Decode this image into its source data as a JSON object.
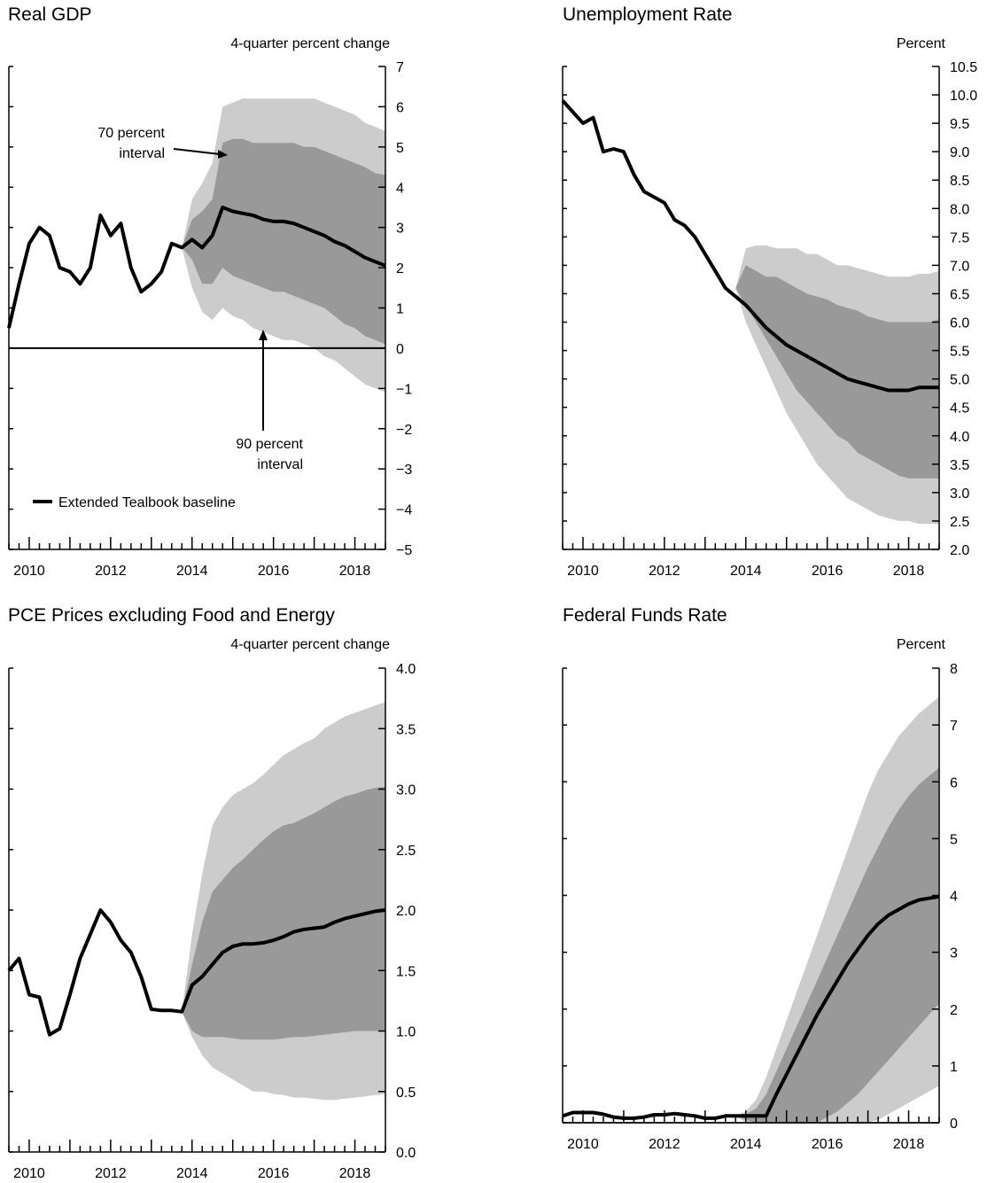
{
  "chart_data": [
    {
      "type": "line",
      "title": "Real GDP",
      "unit_label": "4-quarter percent change",
      "ylim": [
        -5,
        7
      ],
      "xlim": [
        2009.5,
        2018.75
      ],
      "y_ticks": [
        7,
        6,
        5,
        4,
        3,
        2,
        1,
        0,
        -1,
        -2,
        -3,
        -4,
        -5
      ],
      "y_tick_labels": [
        "7",
        "6",
        "5",
        "4",
        "3",
        "2",
        "1",
        "0",
        "−1",
        "−2",
        "−3",
        "−4",
        "−5"
      ],
      "x_tick_labels": [
        "2010",
        "2012",
        "2014",
        "2016",
        "2018"
      ],
      "zero_line": true,
      "colors": {
        "band90": "#cccccc",
        "band70": "#999999",
        "line": "#000000"
      },
      "series": [
        {
          "name": "Extended Tealbook baseline",
          "x": [
            2009.5,
            2009.75,
            2010.0,
            2010.25,
            2010.5,
            2010.75,
            2011.0,
            2011.25,
            2011.5,
            2011.75,
            2012.0,
            2012.25,
            2012.5,
            2012.75,
            2013.0,
            2013.25,
            2013.5,
            2013.75,
            2014.0,
            2014.25,
            2014.5,
            2014.75,
            2015.0,
            2015.25,
            2015.5,
            2015.75,
            2016.0,
            2016.25,
            2016.5,
            2016.75,
            2017.0,
            2017.25,
            2017.5,
            2017.75,
            2018.0,
            2018.25,
            2018.5,
            2018.75
          ],
          "y": [
            0.5,
            1.6,
            2.6,
            3.0,
            2.8,
            2.0,
            1.9,
            1.6,
            2.0,
            3.3,
            2.8,
            3.1,
            2.0,
            1.4,
            1.6,
            1.9,
            2.6,
            2.5,
            2.7,
            2.5,
            2.8,
            3.5,
            3.4,
            3.35,
            3.3,
            3.2,
            3.15,
            3.15,
            3.1,
            3.0,
            2.9,
            2.8,
            2.65,
            2.55,
            2.4,
            2.25,
            2.15,
            2.05
          ]
        }
      ],
      "bands": {
        "x": [
          2013.75,
          2014.0,
          2014.25,
          2014.5,
          2014.75,
          2015.0,
          2015.25,
          2015.5,
          2015.75,
          2016.0,
          2016.25,
          2016.5,
          2016.75,
          2017.0,
          2017.25,
          2017.5,
          2017.75,
          2018.0,
          2018.25,
          2018.5,
          2018.75
        ],
        "p90_low": [
          2.5,
          1.5,
          0.9,
          0.7,
          1.0,
          0.8,
          0.7,
          0.5,
          0.4,
          0.3,
          0.2,
          0.2,
          0.1,
          0.0,
          -0.2,
          -0.3,
          -0.5,
          -0.7,
          -0.9,
          -1.0,
          -1.1
        ],
        "p90_high": [
          2.5,
          3.7,
          4.1,
          4.6,
          6.0,
          6.1,
          6.2,
          6.2,
          6.2,
          6.2,
          6.2,
          6.2,
          6.2,
          6.2,
          6.1,
          6.0,
          5.9,
          5.8,
          5.6,
          5.5,
          5.4
        ],
        "p70_low": [
          2.5,
          2.2,
          1.6,
          1.6,
          2.0,
          1.8,
          1.7,
          1.6,
          1.5,
          1.4,
          1.4,
          1.3,
          1.2,
          1.1,
          1.0,
          0.8,
          0.6,
          0.5,
          0.3,
          0.2,
          0.1
        ],
        "p70_high": [
          2.5,
          3.2,
          3.4,
          3.7,
          5.1,
          5.2,
          5.2,
          5.1,
          5.1,
          5.1,
          5.1,
          5.1,
          5.0,
          5.0,
          4.9,
          4.8,
          4.7,
          4.6,
          4.5,
          4.35,
          4.3
        ]
      },
      "annotations": [
        {
          "text_lines": [
            "70 percent",
            "interval"
          ]
        },
        {
          "text_lines": [
            "90 percent",
            "interval"
          ]
        }
      ],
      "legend": {
        "label": "Extended Tealbook baseline",
        "position": "bottom-left"
      }
    },
    {
      "type": "line",
      "title": "Unemployment Rate",
      "unit_label": "Percent",
      "ylim": [
        2.0,
        10.5
      ],
      "xlim": [
        2009.5,
        2018.75
      ],
      "y_ticks": [
        10.5,
        10.0,
        9.5,
        9.0,
        8.5,
        8.0,
        7.5,
        7.0,
        6.5,
        6.0,
        5.5,
        5.0,
        4.5,
        4.0,
        3.5,
        3.0,
        2.5,
        2.0
      ],
      "y_tick_labels": [
        "10.5",
        "10.0",
        "9.5",
        "9.0",
        "8.5",
        "8.0",
        "7.5",
        "7.0",
        "6.5",
        "6.0",
        "5.5",
        "5.0",
        "4.5",
        "4.0",
        "3.5",
        "3.0",
        "2.5",
        "2.0"
      ],
      "x_tick_labels": [
        "2010",
        "2012",
        "2014",
        "2016",
        "2018"
      ],
      "zero_line": false,
      "colors": {
        "band90": "#cccccc",
        "band70": "#999999",
        "line": "#000000"
      },
      "series": [
        {
          "name": "Extended Tealbook baseline",
          "x": [
            2009.5,
            2009.75,
            2010.0,
            2010.25,
            2010.5,
            2010.75,
            2011.0,
            2011.25,
            2011.5,
            2011.75,
            2012.0,
            2012.25,
            2012.5,
            2012.75,
            2013.0,
            2013.25,
            2013.5,
            2013.75,
            2014.0,
            2014.25,
            2014.5,
            2014.75,
            2015.0,
            2015.25,
            2015.5,
            2015.75,
            2016.0,
            2016.25,
            2016.5,
            2016.75,
            2017.0,
            2017.25,
            2017.5,
            2017.75,
            2018.0,
            2018.25,
            2018.5,
            2018.75
          ],
          "y": [
            9.9,
            9.7,
            9.5,
            9.6,
            9.0,
            9.05,
            9.0,
            8.6,
            8.3,
            8.2,
            8.1,
            7.8,
            7.7,
            7.5,
            7.2,
            6.9,
            6.6,
            6.45,
            6.3,
            6.1,
            5.9,
            5.75,
            5.6,
            5.5,
            5.4,
            5.3,
            5.2,
            5.1,
            5.0,
            4.95,
            4.9,
            4.85,
            4.8,
            4.8,
            4.8,
            4.85,
            4.85,
            4.85
          ]
        }
      ],
      "bands": {
        "x": [
          2013.75,
          2014.0,
          2014.25,
          2014.5,
          2014.75,
          2015.0,
          2015.25,
          2015.5,
          2015.75,
          2016.0,
          2016.25,
          2016.5,
          2016.75,
          2017.0,
          2017.25,
          2017.5,
          2017.75,
          2018.0,
          2018.25,
          2018.5,
          2018.75
        ],
        "p90_low": [
          6.6,
          6.0,
          5.6,
          5.2,
          4.8,
          4.4,
          4.1,
          3.8,
          3.5,
          3.3,
          3.1,
          2.9,
          2.8,
          2.7,
          2.6,
          2.55,
          2.5,
          2.5,
          2.45,
          2.45,
          2.45
        ],
        "p90_high": [
          6.6,
          7.3,
          7.35,
          7.35,
          7.3,
          7.3,
          7.3,
          7.2,
          7.2,
          7.1,
          7.0,
          7.0,
          6.95,
          6.9,
          6.85,
          6.8,
          6.8,
          6.8,
          6.85,
          6.85,
          6.9
        ],
        "p70_low": [
          6.6,
          6.3,
          6.0,
          5.7,
          5.4,
          5.1,
          4.8,
          4.6,
          4.4,
          4.2,
          4.0,
          3.9,
          3.7,
          3.6,
          3.5,
          3.4,
          3.3,
          3.25,
          3.25,
          3.25,
          3.25
        ],
        "p70_high": [
          6.6,
          7.0,
          6.9,
          6.8,
          6.8,
          6.7,
          6.6,
          6.5,
          6.45,
          6.4,
          6.3,
          6.25,
          6.2,
          6.1,
          6.05,
          6.0,
          6.0,
          6.0,
          6.0,
          6.0,
          6.05
        ]
      }
    },
    {
      "type": "line",
      "title": "PCE Prices excluding Food and Energy",
      "unit_label": "4-quarter percent change",
      "ylim": [
        0.0,
        4.0
      ],
      "xlim": [
        2009.5,
        2018.75
      ],
      "y_ticks": [
        4.0,
        3.5,
        3.0,
        2.5,
        2.0,
        1.5,
        1.0,
        0.5,
        0.0
      ],
      "y_tick_labels": [
        "4.0",
        "3.5",
        "3.0",
        "2.5",
        "2.0",
        "1.5",
        "1.0",
        "0.5",
        "0.0"
      ],
      "x_tick_labels": [
        "2010",
        "2012",
        "2014",
        "2016",
        "2018"
      ],
      "zero_line": false,
      "colors": {
        "band90": "#cccccc",
        "band70": "#999999",
        "line": "#000000"
      },
      "series": [
        {
          "name": "Extended Tealbook baseline",
          "x": [
            2009.5,
            2009.75,
            2010.0,
            2010.25,
            2010.5,
            2010.75,
            2011.0,
            2011.25,
            2011.5,
            2011.75,
            2012.0,
            2012.25,
            2012.5,
            2012.75,
            2013.0,
            2013.25,
            2013.5,
            2013.75,
            2014.0,
            2014.25,
            2014.5,
            2014.75,
            2015.0,
            2015.25,
            2015.5,
            2015.75,
            2016.0,
            2016.25,
            2016.5,
            2016.75,
            2017.0,
            2017.25,
            2017.5,
            2017.75,
            2018.0,
            2018.25,
            2018.5,
            2018.75
          ],
          "y": [
            1.5,
            1.6,
            1.3,
            1.28,
            0.97,
            1.02,
            1.3,
            1.6,
            1.8,
            2.0,
            1.9,
            1.75,
            1.65,
            1.45,
            1.18,
            1.17,
            1.17,
            1.16,
            1.38,
            1.45,
            1.55,
            1.65,
            1.7,
            1.72,
            1.72,
            1.73,
            1.75,
            1.78,
            1.82,
            1.84,
            1.85,
            1.86,
            1.9,
            1.93,
            1.95,
            1.97,
            1.99,
            2.0
          ]
        }
      ],
      "bands": {
        "x": [
          2013.75,
          2014.0,
          2014.25,
          2014.5,
          2014.75,
          2015.0,
          2015.25,
          2015.5,
          2015.75,
          2016.0,
          2016.25,
          2016.5,
          2016.75,
          2017.0,
          2017.25,
          2017.5,
          2017.75,
          2018.0,
          2018.25,
          2018.5,
          2018.75
        ],
        "p90_low": [
          1.16,
          0.95,
          0.8,
          0.7,
          0.65,
          0.6,
          0.55,
          0.5,
          0.5,
          0.48,
          0.47,
          0.45,
          0.45,
          0.44,
          0.43,
          0.43,
          0.44,
          0.45,
          0.46,
          0.47,
          0.48
        ],
        "p90_high": [
          1.16,
          1.8,
          2.3,
          2.7,
          2.85,
          2.95,
          3.0,
          3.05,
          3.12,
          3.2,
          3.28,
          3.33,
          3.38,
          3.42,
          3.5,
          3.55,
          3.6,
          3.63,
          3.66,
          3.69,
          3.72
        ],
        "p70_low": [
          1.16,
          1.0,
          0.95,
          0.95,
          0.95,
          0.94,
          0.93,
          0.93,
          0.93,
          0.93,
          0.94,
          0.95,
          0.95,
          0.96,
          0.97,
          0.98,
          0.99,
          1.0,
          1.0,
          1.0,
          1.0
        ],
        "p70_high": [
          1.16,
          1.55,
          1.9,
          2.15,
          2.25,
          2.35,
          2.42,
          2.5,
          2.58,
          2.65,
          2.7,
          2.72,
          2.76,
          2.8,
          2.85,
          2.9,
          2.94,
          2.96,
          2.99,
          3.01,
          3.02
        ]
      }
    },
    {
      "type": "line",
      "title": "Federal Funds Rate",
      "unit_label": "Percent",
      "ylim": [
        0,
        8
      ],
      "xlim": [
        2009.5,
        2018.75
      ],
      "y_ticks": [
        8,
        7,
        6,
        5,
        4,
        3,
        2,
        1,
        0
      ],
      "y_tick_labels": [
        "8",
        "7",
        "6",
        "5",
        "4",
        "3",
        "2",
        "1",
        "0"
      ],
      "x_tick_labels": [
        "2010",
        "2012",
        "2014",
        "2016",
        "2018"
      ],
      "zero_line": true,
      "colors": {
        "band90": "#cccccc",
        "band70": "#999999",
        "line": "#000000"
      },
      "series": [
        {
          "name": "Extended Tealbook baseline",
          "x": [
            2009.5,
            2009.75,
            2010.0,
            2010.25,
            2010.5,
            2010.75,
            2011.0,
            2011.25,
            2011.5,
            2011.75,
            2012.0,
            2012.25,
            2012.5,
            2012.75,
            2013.0,
            2013.25,
            2013.5,
            2013.75,
            2014.0,
            2014.25,
            2014.5,
            2014.75,
            2015.0,
            2015.25,
            2015.5,
            2015.75,
            2016.0,
            2016.25,
            2016.5,
            2016.75,
            2017.0,
            2017.25,
            2017.5,
            2017.75,
            2018.0,
            2018.25,
            2018.5,
            2018.75
          ],
          "y": [
            0.12,
            0.18,
            0.18,
            0.18,
            0.15,
            0.1,
            0.08,
            0.08,
            0.1,
            0.14,
            0.14,
            0.16,
            0.14,
            0.12,
            0.08,
            0.08,
            0.12,
            0.12,
            0.12,
            0.12,
            0.12,
            0.5,
            0.85,
            1.2,
            1.55,
            1.9,
            2.2,
            2.5,
            2.8,
            3.05,
            3.3,
            3.5,
            3.65,
            3.75,
            3.85,
            3.92,
            3.95,
            3.98
          ]
        }
      ],
      "bands": {
        "x": [
          2013.75,
          2014.0,
          2014.25,
          2014.5,
          2014.75,
          2015.0,
          2015.25,
          2015.5,
          2015.75,
          2016.0,
          2016.25,
          2016.5,
          2016.75,
          2017.0,
          2017.25,
          2017.5,
          2017.75,
          2018.0,
          2018.25,
          2018.5,
          2018.75
        ],
        "p90_low": [
          0.12,
          0.0,
          0.0,
          0.0,
          0.0,
          0.0,
          0.0,
          0.0,
          0.0,
          0.0,
          0.0,
          0.0,
          0.0,
          0.0,
          0.05,
          0.15,
          0.25,
          0.35,
          0.45,
          0.55,
          0.65
        ],
        "p90_high": [
          0.12,
          0.2,
          0.4,
          0.8,
          1.3,
          1.8,
          2.3,
          2.8,
          3.3,
          3.8,
          4.3,
          4.8,
          5.3,
          5.8,
          6.2,
          6.5,
          6.8,
          7.0,
          7.2,
          7.35,
          7.5
        ],
        "p70_low": [
          0.12,
          0.05,
          0.0,
          0.0,
          0.0,
          0.0,
          0.0,
          0.0,
          0.0,
          0.1,
          0.2,
          0.35,
          0.5,
          0.7,
          0.9,
          1.1,
          1.3,
          1.5,
          1.7,
          1.9,
          2.1
        ],
        "p70_high": [
          0.12,
          0.15,
          0.25,
          0.5,
          0.9,
          1.3,
          1.7,
          2.1,
          2.5,
          2.9,
          3.3,
          3.7,
          4.1,
          4.5,
          4.85,
          5.2,
          5.5,
          5.75,
          5.95,
          6.1,
          6.25
        ]
      }
    }
  ]
}
